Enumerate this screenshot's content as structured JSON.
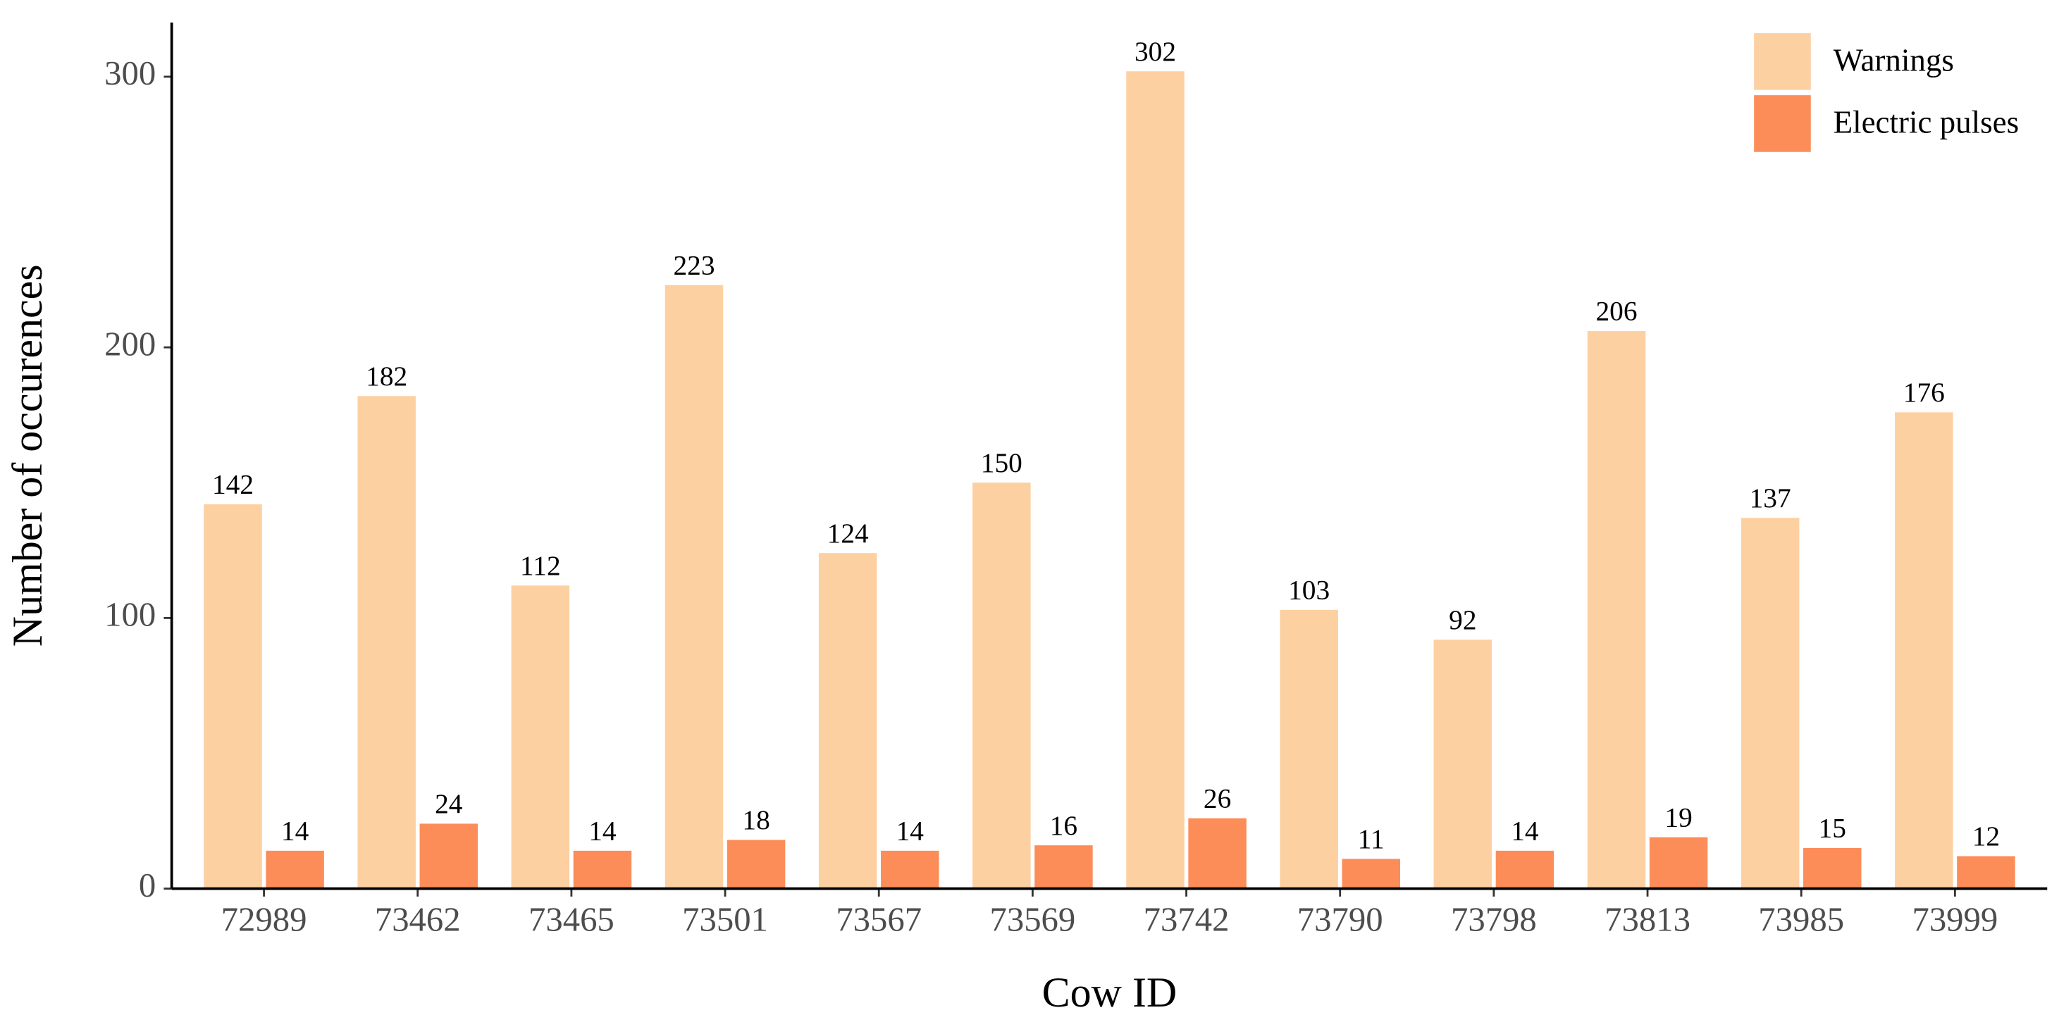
{
  "chart_data": {
    "type": "bar",
    "x_label": "Cow ID",
    "y_label": "Number of occurences",
    "categories": [
      "72989",
      "73462",
      "73465",
      "73501",
      "73567",
      "73569",
      "73742",
      "73790",
      "73798",
      "73813",
      "73985",
      "73999"
    ],
    "series": [
      {
        "name": "Warnings",
        "color": "#fdd0a2",
        "values": [
          142,
          182,
          112,
          223,
          124,
          150,
          302,
          103,
          92,
          206,
          137,
          176
        ]
      },
      {
        "name": "Electric pulses",
        "color": "#fc8d59",
        "values": [
          14,
          24,
          14,
          18,
          14,
          16,
          26,
          11,
          14,
          19,
          15,
          12
        ]
      }
    ],
    "ylim": [
      0,
      320
    ],
    "yticks": [
      0,
      100,
      200,
      300
    ],
    "legend": "top-right",
    "grid": false
  }
}
